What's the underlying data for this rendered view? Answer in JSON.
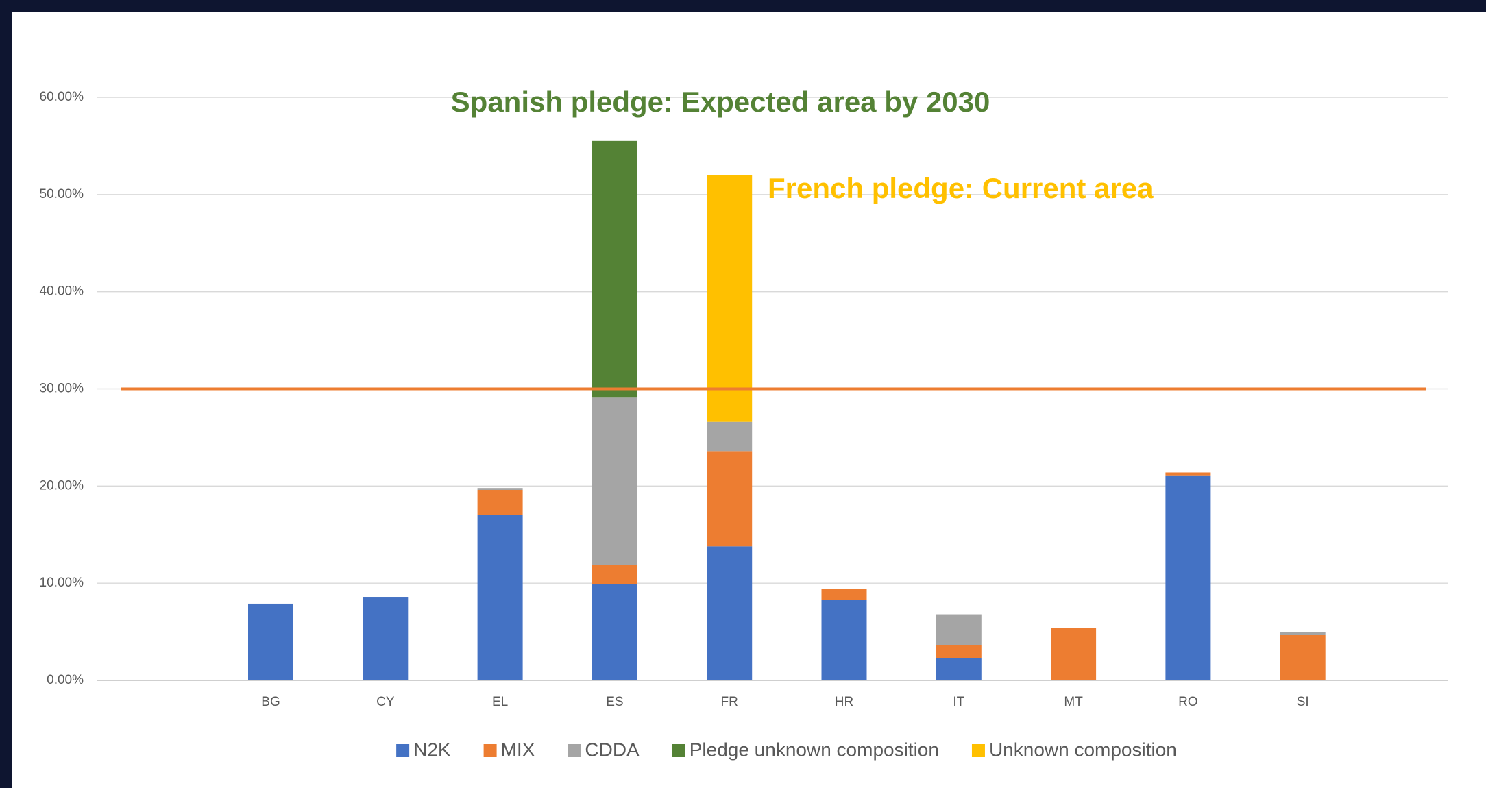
{
  "chart_data": {
    "type": "stacked-bar",
    "categories": [
      "BG",
      "CY",
      "EL",
      "ES",
      "FR",
      "HR",
      "IT",
      "MT",
      "RO",
      "SI"
    ],
    "series": [
      {
        "name": "N2K",
        "color": "#4472c4",
        "values": [
          7.9,
          8.6,
          17.0,
          9.9,
          13.8,
          8.3,
          2.3,
          null,
          21.1,
          null
        ]
      },
      {
        "name": "MIX",
        "color": "#ed7d31",
        "values": [
          null,
          null,
          2.6,
          2.0,
          9.8,
          1.1,
          1.3,
          5.4,
          0.3,
          4.7
        ]
      },
      {
        "name": "CDDA",
        "color": "#a5a5a5",
        "values": [
          null,
          null,
          0.2,
          17.2,
          3.0,
          null,
          3.2,
          null,
          null,
          0.3
        ]
      },
      {
        "name": "Pledge unknown composition",
        "color": "#548235",
        "values": [
          null,
          null,
          null,
          26.4,
          null,
          null,
          null,
          null,
          null,
          null
        ]
      },
      {
        "name": "Unknown composition",
        "color": "#ffc000",
        "values": [
          null,
          null,
          null,
          null,
          25.4,
          null,
          null,
          null,
          null,
          null
        ]
      }
    ],
    "ylim": [
      0,
      60
    ],
    "yticks": [
      {
        "value": 0,
        "label": "0.00%"
      },
      {
        "value": 10,
        "label": "10.00%"
      },
      {
        "value": 20,
        "label": "20.00%"
      },
      {
        "value": 30,
        "label": "30.00%"
      },
      {
        "value": 40,
        "label": "40.00%"
      },
      {
        "value": 50,
        "label": "50.00%"
      },
      {
        "value": 60,
        "label": "60.00%"
      }
    ],
    "grid": true,
    "legend": "bottom",
    "reference_line": {
      "value": 30,
      "color": "#ed7d31"
    },
    "annotations": [
      {
        "text": "Spanish pledge: Expected area by 2030",
        "color": "#548235"
      },
      {
        "text": "French pledge: Current area",
        "color": "#ffc000"
      }
    ]
  }
}
